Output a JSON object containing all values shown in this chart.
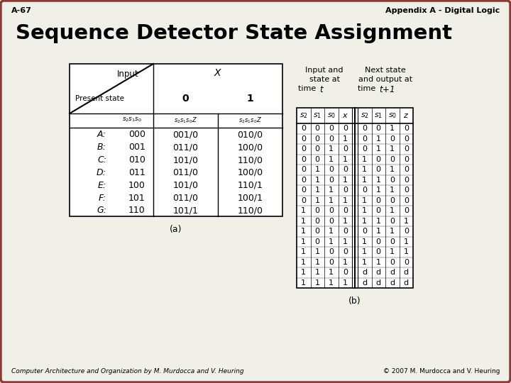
{
  "bg_color": "#f0f0e8",
  "border_color": "#8B3A3A",
  "top_left_text": "A-67",
  "top_right_text": "Appendix A - Digital Logic",
  "title": "Sequence Detector State Assignment",
  "bottom_left_text": "Computer Architecture and Organization by M. Murdocca and V. Heuring",
  "bottom_right_text": "© 2007 M. Murdocca and V. Heuring",
  "table_a_rows": [
    [
      "A:",
      "000",
      "001/0",
      "010/0"
    ],
    [
      "B:",
      "001",
      "011/0",
      "100/0"
    ],
    [
      "C:",
      "010",
      "101/0",
      "110/0"
    ],
    [
      "D:",
      "011",
      "011/0",
      "100/0"
    ],
    [
      "E:",
      "100",
      "101/0",
      "110/1"
    ],
    [
      "F:",
      "101",
      "011/0",
      "100/1"
    ],
    [
      "G:",
      "110",
      "101/1",
      "110/0"
    ]
  ],
  "table_a_label": "(a)",
  "table_b_rows": [
    [
      "0",
      "0",
      "0",
      "0",
      "0",
      "0",
      "1",
      "0"
    ],
    [
      "0",
      "0",
      "0",
      "1",
      "0",
      "1",
      "0",
      "0"
    ],
    [
      "0",
      "0",
      "1",
      "0",
      "0",
      "1",
      "1",
      "0"
    ],
    [
      "0",
      "0",
      "1",
      "1",
      "1",
      "0",
      "0",
      "0"
    ],
    [
      "0",
      "1",
      "0",
      "0",
      "1",
      "0",
      "1",
      "0"
    ],
    [
      "0",
      "1",
      "0",
      "1",
      "1",
      "1",
      "0",
      "0"
    ],
    [
      "0",
      "1",
      "1",
      "0",
      "0",
      "1",
      "1",
      "0"
    ],
    [
      "0",
      "1",
      "1",
      "1",
      "1",
      "0",
      "0",
      "0"
    ],
    [
      "1",
      "0",
      "0",
      "0",
      "1",
      "0",
      "1",
      "0"
    ],
    [
      "1",
      "0",
      "0",
      "1",
      "1",
      "1",
      "0",
      "1"
    ],
    [
      "1",
      "0",
      "1",
      "0",
      "0",
      "1",
      "1",
      "0"
    ],
    [
      "1",
      "0",
      "1",
      "1",
      "1",
      "0",
      "0",
      "1"
    ],
    [
      "1",
      "1",
      "0",
      "0",
      "1",
      "0",
      "1",
      "1"
    ],
    [
      "1",
      "1",
      "0",
      "1",
      "1",
      "1",
      "0",
      "0"
    ],
    [
      "1",
      "1",
      "1",
      "0",
      "d",
      "d",
      "d",
      "d"
    ],
    [
      "1",
      "1",
      "1",
      "1",
      "d",
      "d",
      "d",
      "d"
    ]
  ],
  "table_b_label": "(b)"
}
